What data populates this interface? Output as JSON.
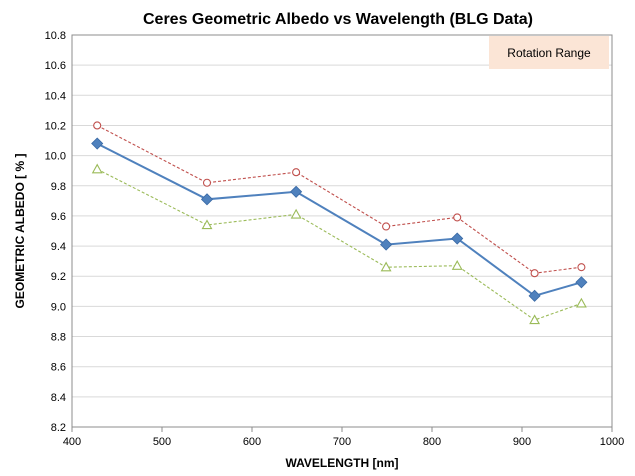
{
  "chart_data": {
    "type": "line",
    "title": "Ceres Geometric Albedo vs Wavelength (BLG Data)",
    "xlabel": "WAVELENGTH [nm]",
    "ylabel": "GEOMETRIC ALBEDO [ % ]",
    "xlim": [
      400,
      1000
    ],
    "ylim": [
      8.2,
      10.8
    ],
    "xticks": [
      "400",
      "500",
      "600",
      "700",
      "800",
      "900",
      "1000"
    ],
    "yticks": [
      "8.2",
      "8.4",
      "8.6",
      "8.8",
      "9.0",
      "9.2",
      "9.4",
      "9.6",
      "9.8",
      "10.0",
      "10.2",
      "10.4",
      "10.6",
      "10.8"
    ],
    "grid": "horizontal",
    "legend_label": "Rotation Range",
    "legend_placement": "top-right",
    "x": [
      428,
      550,
      649,
      749,
      828,
      914,
      966
    ],
    "series": [
      {
        "values": [
          10.2,
          9.82,
          9.89,
          9.53,
          9.59,
          9.22,
          9.26
        ],
        "color": "#c0504d",
        "line": "dashed",
        "marker": "open-circle"
      },
      {
        "values": [
          10.08,
          9.71,
          9.76,
          9.41,
          9.45,
          9.07,
          9.16
        ],
        "color": "#4f81bd",
        "line": "solid",
        "marker": "filled-diamond"
      },
      {
        "values": [
          9.91,
          9.54,
          9.61,
          9.26,
          9.27,
          8.91,
          9.02
        ],
        "color": "#9bbb59",
        "line": "dashed",
        "marker": "open-triangle"
      }
    ]
  }
}
